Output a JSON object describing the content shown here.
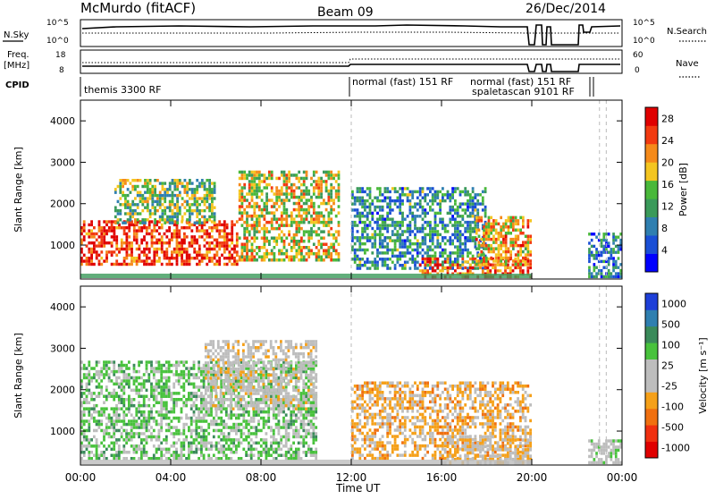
{
  "header": {
    "station": "McMurdo (fitACF)",
    "beam": "Beam 09",
    "date": "26/Dec/2014"
  },
  "strip_labels": {
    "nsky": "N.Sky",
    "nsky_ticks": [
      "10^5",
      "10^0"
    ],
    "freq": "Freq.",
    "freq_unit": "[MHz]",
    "freq_ticks": [
      "18",
      "8"
    ],
    "cpid": "CPID",
    "nsearch": "N.Search",
    "nsearch_ticks": [
      "10^5",
      "10^0"
    ],
    "nave": "Nave",
    "nave_ticks": [
      "60",
      "0"
    ]
  },
  "cpid_segments": [
    {
      "label": "themis 3300 RF",
      "start_hour": 0.0
    },
    {
      "label": "normal (fast) 151 RF",
      "start_hour": 12.0
    },
    {
      "label": "normal (fast) 151 RF",
      "start_hour": 17.8
    },
    {
      "label": "spaletascan 9101 RF",
      "start_hour": 18.1
    }
  ],
  "colors": {
    "power_scale": [
      "#0000ff",
      "#1a4fd6",
      "#2f7fb0",
      "#3a9a5a",
      "#49b83a",
      "#f4c520",
      "#f58a1a",
      "#f23a10",
      "#e00000"
    ],
    "velocity_scale": [
      "#1e3fd8",
      "#2f7fb0",
      "#3a8a5a",
      "#48c23c",
      "#bdbdbd",
      "#bdbdbd",
      "#f5a019",
      "#f07010",
      "#f03010",
      "#e00000"
    ]
  },
  "chart_data": [
    {
      "type": "heatmap",
      "title": "",
      "xlabel": "Time UT",
      "ylabel": "Slant Range [km]",
      "xlim": [
        0,
        24
      ],
      "ylim": [
        180,
        4500
      ],
      "x_ticks": [
        "00:00",
        "04:00",
        "08:00",
        "12:00",
        "16:00",
        "20:00",
        "00:00"
      ],
      "y_ticks": [
        1000,
        2000,
        3000,
        4000
      ],
      "colorbar": {
        "label": "Power [dB]",
        "ticks": [
          4,
          8,
          12,
          16,
          20,
          24,
          28
        ],
        "range": [
          0,
          30
        ]
      },
      "echo_regions": [
        {
          "t0": 0.0,
          "t1": 7.0,
          "r0": 500,
          "r1": 1600,
          "value": 26
        },
        {
          "t0": 1.5,
          "t1": 6.0,
          "r0": 1500,
          "r1": 2600,
          "value": 14
        },
        {
          "t0": 7.0,
          "t1": 11.5,
          "r0": 600,
          "r1": 2800,
          "value": 18
        },
        {
          "t0": 12.0,
          "t1": 18.0,
          "r0": 400,
          "r1": 2400,
          "value": 10
        },
        {
          "t0": 15.0,
          "t1": 20.0,
          "r0": 200,
          "r1": 700,
          "value": 24
        },
        {
          "t0": 17.5,
          "t1": 20.0,
          "r0": 500,
          "r1": 1700,
          "value": 20
        },
        {
          "t0": 22.5,
          "t1": 24.0,
          "r0": 200,
          "r1": 1300,
          "value": 8
        }
      ]
    },
    {
      "type": "heatmap",
      "title": "",
      "xlabel": "Time UT",
      "ylabel": "Slant Range [km]",
      "xlim": [
        0,
        24
      ],
      "ylim": [
        180,
        4500
      ],
      "x_ticks": [
        "00:00",
        "04:00",
        "08:00",
        "12:00",
        "16:00",
        "20:00",
        "00:00"
      ],
      "y_ticks": [
        1000,
        2000,
        3000,
        4000
      ],
      "colorbar": {
        "label": "Velocity [m s⁻¹]",
        "ticks": [
          1000,
          500,
          100,
          25,
          -25,
          -100,
          -500,
          -1000
        ],
        "range": [
          -1200,
          1200
        ]
      },
      "echo_regions": [
        {
          "t0": 0.0,
          "t1": 10.5,
          "r0": 300,
          "r1": 2700,
          "value": 300
        },
        {
          "t0": 5.5,
          "t1": 10.5,
          "r0": 1500,
          "r1": 3200,
          "value": -60
        },
        {
          "t0": 12.0,
          "t1": 20.0,
          "r0": 300,
          "r1": 2200,
          "value": -300
        },
        {
          "t0": 16.0,
          "t1": 20.0,
          "r0": 200,
          "r1": 900,
          "value": -150
        },
        {
          "t0": 22.5,
          "t1": 24.0,
          "r0": 200,
          "r1": 800,
          "value": 120
        }
      ]
    }
  ]
}
